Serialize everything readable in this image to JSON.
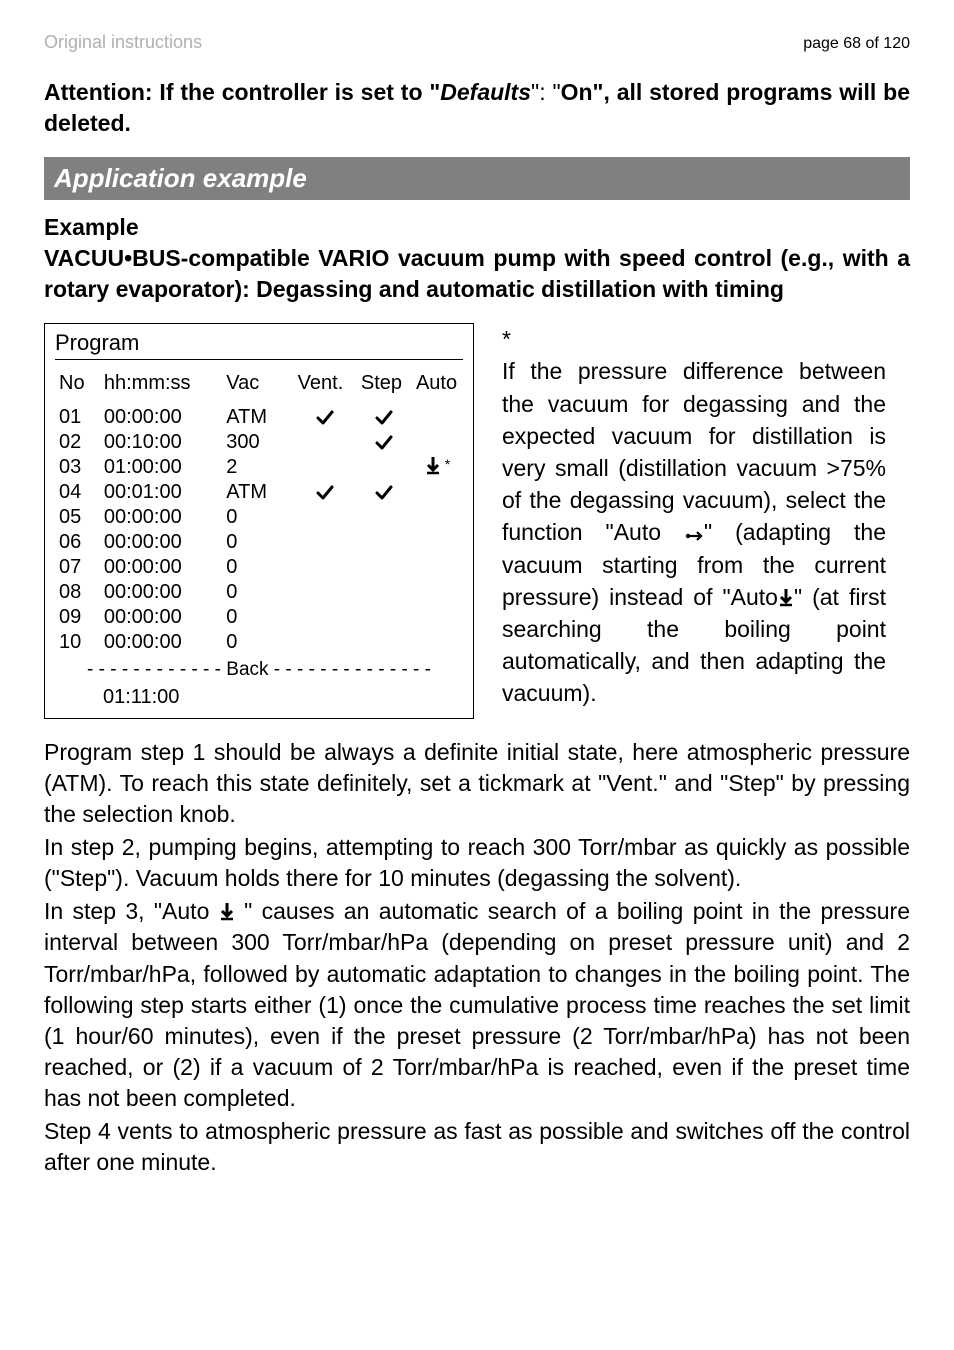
{
  "header": {
    "left": "Original instructions",
    "right": "page 68 of 120"
  },
  "attention": {
    "p1_bold": "Attention: If the controller is set to \"",
    "p1_italic": "Defaults",
    "p1_after": "\"",
    "p2": ": \"",
    "p3_bold": "On\", all stored programs will be deleted."
  },
  "section_bar": "Application example",
  "example": {
    "label": "Example",
    "desc": "VACUU•BUS-compatible VARIO vacuum pump with speed control (e.g., with a rotary evaporator): Degassing and automatic distillation with timing"
  },
  "program": {
    "title": "Program",
    "headers": {
      "no": "No",
      "time": "hh:mm:ss",
      "vac": "Vac",
      "vent": "Vent.",
      "step": "Step",
      "auto": "Auto"
    },
    "rows": [
      {
        "no": "01",
        "time": "00:00:00",
        "vac": "ATM",
        "vent": true,
        "step": true,
        "auto": ""
      },
      {
        "no": "02",
        "time": "00:10:00",
        "vac": "300",
        "vent": false,
        "step": true,
        "auto": ""
      },
      {
        "no": "03",
        "time": "01:00:00",
        "vac": "2",
        "vent": false,
        "step": false,
        "auto": "icon"
      },
      {
        "no": "04",
        "time": "00:01:00",
        "vac": "ATM",
        "vent": true,
        "step": true,
        "auto": ""
      },
      {
        "no": "05",
        "time": "00:00:00",
        "vac": "0",
        "vent": false,
        "step": false,
        "auto": ""
      },
      {
        "no": "06",
        "time": "00:00:00",
        "vac": "0",
        "vent": false,
        "step": false,
        "auto": ""
      },
      {
        "no": "07",
        "time": "00:00:00",
        "vac": "0",
        "vent": false,
        "step": false,
        "auto": ""
      },
      {
        "no": "08",
        "time": "00:00:00",
        "vac": "0",
        "vent": false,
        "step": false,
        "auto": ""
      },
      {
        "no": "09",
        "time": "00:00:00",
        "vac": "0",
        "vent": false,
        "step": false,
        "auto": ""
      },
      {
        "no": "10",
        "time": "00:00:00",
        "vac": "0",
        "vent": false,
        "step": false,
        "auto": ""
      }
    ],
    "back_row": "- - - - - - - - - - - - Back - - - - - - - - - - - - - -",
    "last_time": "01:11:00"
  },
  "side": {
    "star": "*",
    "t1": "If the pressure difference between the vacuum for degassing and the expected vacuum for distillation is very small (distillation vacuum >75% of the degassing vacuum), select the function \"Auto ",
    "t2": "\" (adapting the vacuum starting from the current pressure) instead of  \"Auto",
    "t3": "\" (at first searching the boiling point automatically, and then adapting the vacuum)."
  },
  "paras": {
    "p1": "Program step 1 should be always a definite initial state, here atmospheric pressure (ATM). To reach this state definitely, set a tickmark at \"Vent.\" and \"Step\" by pressing the selection knob.",
    "p2": "In step 2, pumping begins, attempting to reach 300 Torr/mbar as quickly as possible (\"Step\"). Vacuum holds there for 10 minutes (degassing the solvent).",
    "p3a": "In step 3, \"Auto ",
    "p3b": " \" causes an automatic search of a boiling point in the pressure interval between 300 Torr/mbar/hPa (depending on preset pressure unit) and 2 Torr/mbar/hPa, followed by automatic adaptation to changes in the boiling point. The following step starts either (1) once the cumulative process time reaches the set limit (1 hour/60 minutes), even if the preset pressure (2 Torr/mbar/hPa) has not been reached, or (2) if a vacuum of 2 Torr/mbar/hPa is reached, even if the preset time has not been completed.",
    "p4": "Step 4 vents to atmospheric pressure as fast as possible and switches off the control after one minute."
  },
  "colors": {
    "section_bg": "#808080",
    "section_fg": "#ffffff",
    "header_grey": "#b0b0b0",
    "text": "#000000"
  }
}
